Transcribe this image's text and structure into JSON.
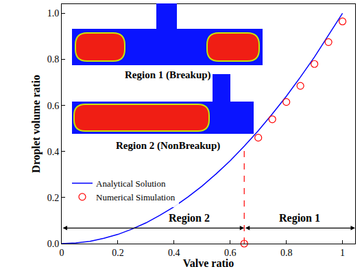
{
  "chart_data": {
    "type": "line",
    "x_label": "Valve ratio",
    "y_label": "Droplet volume ratio",
    "xlim": [
      0,
      1.045
    ],
    "ylim": [
      0,
      1.04
    ],
    "xticks": [
      0,
      0.2,
      0.4,
      0.6,
      0.8,
      1
    ],
    "yticks": [
      {
        "value": 0,
        "label": "0.0"
      },
      0.2,
      0.4,
      0.6,
      0.8,
      {
        "value": 1,
        "label": "1.0"
      }
    ],
    "grid": false,
    "legend": "left",
    "series": [
      {
        "name": "Analytical Solution",
        "type": "line",
        "color": "#0000ff",
        "line_style": "solid",
        "x": [
          0,
          0.05,
          0.1,
          0.15,
          0.2,
          0.25,
          0.3,
          0.35,
          0.4,
          0.45,
          0.5,
          0.55,
          0.6,
          0.65,
          0.7,
          0.75,
          0.8,
          0.85,
          0.9,
          0.95,
          1.0
        ],
        "values": [
          0,
          0.003,
          0.01,
          0.023,
          0.04,
          0.063,
          0.09,
          0.123,
          0.16,
          0.203,
          0.25,
          0.303,
          0.36,
          0.423,
          0.49,
          0.563,
          0.64,
          0.723,
          0.81,
          0.903,
          1.0
        ]
      },
      {
        "name": "Numerical Simulation",
        "type": "scatter",
        "color": "#ff0000",
        "marker": "circle-open",
        "x": [
          0.65,
          0.7,
          0.75,
          0.8,
          0.85,
          0.9,
          0.95,
          1.0
        ],
        "values": [
          0.0,
          0.46,
          0.54,
          0.615,
          0.685,
          0.78,
          0.875,
          0.965
        ]
      }
    ],
    "threshold": {
      "x": 0.65,
      "y": 0.42
    },
    "regions": [
      {
        "label": "Region 2",
        "from": 0,
        "to": 0.65
      },
      {
        "label": "Region 1",
        "from": 0.65,
        "to": 1.045
      }
    ],
    "insets": [
      {
        "label": "Region 1 (Breakup)"
      },
      {
        "label": "Region 2 (NonBreakup)"
      }
    ]
  }
}
